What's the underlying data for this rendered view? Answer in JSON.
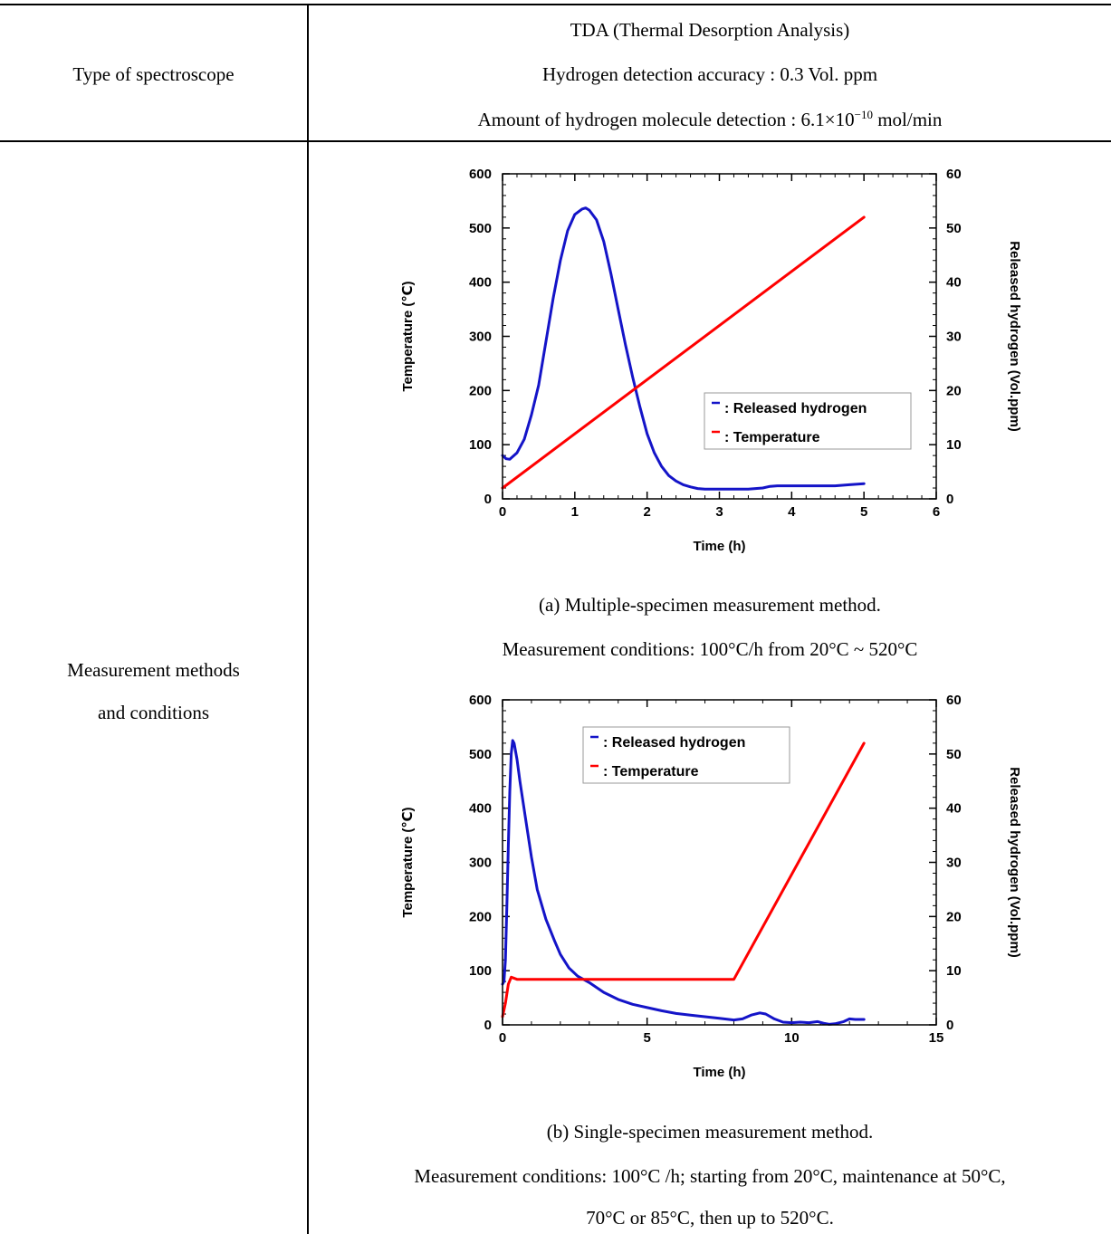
{
  "table": {
    "row1": {
      "label": "Type of spectroscope",
      "line1": "TDA (Thermal Desorption Analysis)",
      "line2": "Hydrogen detection accuracy : 0.3 Vol. ppm",
      "line3_prefix": "Amount of hydrogen molecule detection : 6.1×10",
      "line3_exp": "−10",
      "line3_suffix": " mol/min"
    },
    "row2": {
      "label_line1": "Measurement methods",
      "label_line2": "and conditions",
      "caption_a_line1": "(a) Multiple-specimen measurement method.",
      "caption_a_line2": "Measurement conditions: 100°C/h from 20°C ~ 520°C",
      "caption_b_line1": "(b) Single-specimen measurement method.",
      "caption_b_line2": "Measurement conditions: 100°C /h; starting from 20°C, maintenance at 50°C,",
      "caption_b_line3": "70°C or 85°C, then up to 520°C."
    }
  },
  "chart_data": [
    {
      "type": "line",
      "xlabel": "Time (h)",
      "ylabel_left": "Temperature (℃)",
      "ylabel_right": "Released hydrogen (Vol.ppm)",
      "xlim": [
        0,
        6
      ],
      "ylim_left": [
        0,
        600
      ],
      "ylim_right": [
        0,
        60
      ],
      "xticks": [
        0,
        1,
        2,
        3,
        4,
        5,
        6
      ],
      "yticks_left": [
        0,
        100,
        200,
        300,
        400,
        500,
        600
      ],
      "yticks_right": [
        0,
        10,
        20,
        30,
        40,
        50,
        60
      ],
      "legend_position": "right-middle",
      "series": [
        {
          "name": ": Released hydrogen",
          "color": "#1414c8",
          "axis": "right",
          "x": [
            0,
            0.05,
            0.1,
            0.2,
            0.3,
            0.4,
            0.5,
            0.6,
            0.7,
            0.8,
            0.9,
            1.0,
            1.1,
            1.15,
            1.2,
            1.3,
            1.4,
            1.5,
            1.6,
            1.7,
            1.8,
            1.9,
            2.0,
            2.1,
            2.2,
            2.3,
            2.4,
            2.5,
            2.6,
            2.7,
            2.8,
            2.9,
            3.0,
            3.2,
            3.4,
            3.6,
            3.7,
            3.8,
            4.0,
            4.2,
            4.4,
            4.6,
            4.8,
            5.0
          ],
          "y": [
            8,
            7.4,
            7.3,
            8.5,
            11,
            15.5,
            21,
            29,
            37,
            44,
            49.5,
            52.5,
            53.5,
            53.7,
            53.3,
            51.5,
            47.5,
            41.5,
            35,
            28.5,
            22.5,
            17,
            12,
            8.5,
            6,
            4.3,
            3.3,
            2.6,
            2.2,
            1.9,
            1.8,
            1.8,
            1.8,
            1.8,
            1.8,
            2.0,
            2.3,
            2.4,
            2.4,
            2.4,
            2.4,
            2.4,
            2.6,
            2.8
          ]
        },
        {
          "name": ": Temperature",
          "color": "#ff0000",
          "axis": "left",
          "x": [
            0,
            5
          ],
          "y": [
            20,
            520
          ]
        }
      ]
    },
    {
      "type": "line",
      "xlabel": "Time (h)",
      "ylabel_left": "Temperature (℃)",
      "ylabel_right": "Released hydrogen (Vol.ppm)",
      "xlim": [
        0,
        15
      ],
      "ylim_left": [
        0,
        600
      ],
      "ylim_right": [
        0,
        60
      ],
      "xticks": [
        0,
        5,
        10,
        15
      ],
      "yticks_left": [
        0,
        100,
        200,
        300,
        400,
        500,
        600
      ],
      "yticks_right": [
        0,
        10,
        20,
        30,
        40,
        50,
        60
      ],
      "legend_position": "top-middle",
      "series": [
        {
          "name": ": Released hydrogen",
          "color": "#1414c8",
          "axis": "right",
          "x": [
            0,
            0.05,
            0.1,
            0.15,
            0.2,
            0.25,
            0.3,
            0.35,
            0.4,
            0.5,
            0.6,
            0.8,
            1.0,
            1.2,
            1.5,
            1.8,
            2.0,
            2.3,
            2.6,
            3.0,
            3.5,
            4.0,
            4.5,
            5.0,
            5.5,
            6.0,
            6.5,
            7.0,
            7.5,
            8.0,
            8.3,
            8.6,
            8.9,
            9.1,
            9.4,
            9.7,
            10.0,
            10.3,
            10.6,
            10.9,
            11.1,
            11.3,
            11.5,
            11.8,
            12.0,
            12.2,
            12.5
          ],
          "y": [
            7.5,
            8,
            12,
            22,
            33,
            43,
            50,
            52.5,
            52,
            49,
            45,
            38,
            31,
            25,
            19.5,
            15.5,
            13,
            10.5,
            9,
            7.8,
            6,
            4.7,
            3.8,
            3.2,
            2.6,
            2.1,
            1.8,
            1.5,
            1.2,
            0.9,
            1.1,
            1.8,
            2.2,
            2.0,
            1.1,
            0.5,
            0.4,
            0.5,
            0.4,
            0.6,
            0.3,
            0.1,
            0.2,
            0.6,
            1.1,
            1.0,
            1.0
          ]
        },
        {
          "name": ": Temperature",
          "color": "#ff0000",
          "axis": "left",
          "x": [
            0,
            0.1,
            0.2,
            0.3,
            0.5,
            1,
            2,
            4,
            6,
            8,
            12.5
          ],
          "y": [
            15,
            40,
            75,
            88,
            84,
            84,
            84,
            84,
            84,
            84,
            520
          ]
        }
      ]
    }
  ]
}
